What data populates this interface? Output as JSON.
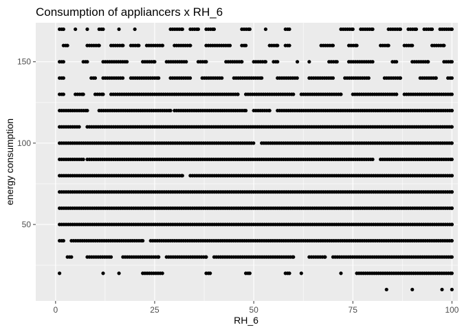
{
  "chart_data": {
    "type": "scatter",
    "title": "Consumption of appliancers x RH_6",
    "xlabel": "RH_6",
    "ylabel": "energy consumption",
    "xlim": [
      -5,
      101.5
    ],
    "ylim": [
      3,
      174
    ],
    "x_ticks": [
      0,
      25,
      50,
      75,
      100
    ],
    "y_ticks": [
      50,
      100,
      150
    ],
    "x_tick_labels": [
      "0",
      "25",
      "50",
      "75",
      "100"
    ],
    "y_tick_labels": [
      "50",
      "100",
      "150"
    ],
    "grid": true,
    "legend": "none",
    "point_color": "#000000",
    "panel_color": "#ebebeb",
    "grid_color": "#ffffff",
    "note_on_points": "Points are dense horizontal bands at each y level (10-unit steps from 10 to 170) spanning RH_6 roughly 1 to 100; coverage thins at higher and lower levels.",
    "bands": [
      {
        "y": 10,
        "segments": [
          [
            83.5,
            83.5
          ],
          [
            90,
            90
          ],
          [
            97.5,
            97.5
          ],
          [
            100,
            100
          ]
        ]
      },
      {
        "y": 20,
        "segments": [
          [
            1,
            1
          ],
          [
            12,
            12
          ],
          [
            16,
            16
          ],
          [
            22,
            27
          ],
          [
            38,
            39
          ],
          [
            48,
            49
          ],
          [
            58,
            59
          ],
          [
            62,
            62
          ],
          [
            72,
            72
          ],
          [
            76,
            100
          ]
        ]
      },
      {
        "y": 30,
        "segments": [
          [
            3,
            4
          ],
          [
            8,
            14
          ],
          [
            17,
            26
          ],
          [
            28,
            38
          ],
          [
            40,
            60
          ],
          [
            64,
            68
          ],
          [
            70,
            100
          ]
        ]
      },
      {
        "y": 40,
        "segments": [
          [
            1,
            2
          ],
          [
            4,
            22
          ],
          [
            24,
            100
          ]
        ]
      },
      {
        "y": 50,
        "segments": [
          [
            1,
            100
          ]
        ]
      },
      {
        "y": 60,
        "segments": [
          [
            1,
            100
          ]
        ]
      },
      {
        "y": 70,
        "segments": [
          [
            1,
            100
          ]
        ]
      },
      {
        "y": 80,
        "segments": [
          [
            1,
            32
          ],
          [
            34,
            100
          ]
        ]
      },
      {
        "y": 90,
        "segments": [
          [
            1,
            7
          ],
          [
            8,
            80
          ],
          [
            82,
            100
          ]
        ]
      },
      {
        "y": 100,
        "segments": [
          [
            1,
            50
          ],
          [
            52,
            100
          ]
        ]
      },
      {
        "y": 110,
        "segments": [
          [
            1,
            6
          ],
          [
            8,
            100
          ]
        ]
      },
      {
        "y": 120,
        "segments": [
          [
            1,
            8
          ],
          [
            11,
            29
          ],
          [
            30,
            48
          ],
          [
            50,
            54
          ],
          [
            56,
            100
          ]
        ]
      },
      {
        "y": 130,
        "segments": [
          [
            1,
            2
          ],
          [
            5,
            7
          ],
          [
            10,
            12
          ],
          [
            14,
            46
          ],
          [
            48,
            60
          ],
          [
            62,
            72
          ],
          [
            75,
            86
          ],
          [
            88,
            100
          ]
        ]
      },
      {
        "y": 140,
        "segments": [
          [
            1,
            2
          ],
          [
            9,
            10
          ],
          [
            12,
            17
          ],
          [
            19,
            26
          ],
          [
            29,
            34
          ],
          [
            37,
            42
          ],
          [
            45,
            52
          ],
          [
            56,
            61
          ],
          [
            64,
            70
          ],
          [
            73,
            79
          ],
          [
            83,
            87
          ],
          [
            92,
            96
          ],
          [
            99,
            100
          ]
        ]
      },
      {
        "y": 150,
        "segments": [
          [
            1,
            2
          ],
          [
            7,
            8
          ],
          [
            12,
            18
          ],
          [
            22,
            25
          ],
          [
            28,
            33
          ],
          [
            36,
            38
          ],
          [
            43,
            47
          ],
          [
            50,
            53
          ],
          [
            55,
            56
          ],
          [
            61,
            61
          ],
          [
            64,
            64
          ],
          [
            69,
            71
          ],
          [
            74,
            80
          ],
          [
            85,
            86
          ],
          [
            90,
            94
          ],
          [
            98,
            100
          ]
        ]
      },
      {
        "y": 160,
        "segments": [
          [
            2,
            3
          ],
          [
            8,
            11
          ],
          [
            14,
            17
          ],
          [
            19,
            21
          ],
          [
            23,
            27
          ],
          [
            30,
            34
          ],
          [
            38,
            44
          ],
          [
            47,
            48
          ],
          [
            54,
            56
          ],
          [
            58,
            59
          ],
          [
            67,
            70
          ],
          [
            74,
            76
          ],
          [
            82,
            84
          ],
          [
            88,
            90
          ],
          [
            95,
            98
          ]
        ]
      },
      {
        "y": 170,
        "segments": [
          [
            1,
            2
          ],
          [
            5,
            5
          ],
          [
            8,
            8
          ],
          [
            11,
            12
          ],
          [
            16,
            16
          ],
          [
            20,
            20
          ],
          [
            29,
            32
          ],
          [
            34,
            36
          ],
          [
            38,
            40
          ],
          [
            47,
            49
          ],
          [
            53,
            53
          ],
          [
            58,
            59
          ],
          [
            72,
            75
          ],
          [
            77,
            80
          ],
          [
            84,
            87
          ],
          [
            89,
            91
          ],
          [
            93,
            95
          ],
          [
            97,
            100
          ]
        ]
      }
    ]
  }
}
